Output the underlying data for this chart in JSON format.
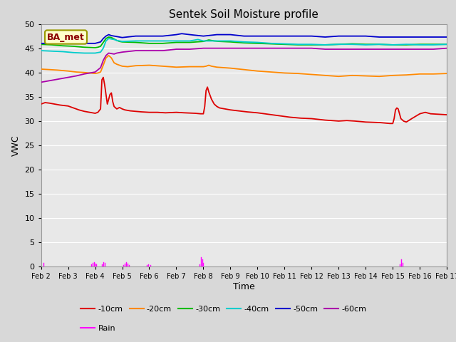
{
  "title": "Sentek Soil Moisture profile",
  "xlabel": "Time",
  "ylabel": "VWC",
  "xlim": [
    0,
    15
  ],
  "ylim": [
    0,
    50
  ],
  "yticks": [
    0,
    5,
    10,
    15,
    20,
    25,
    30,
    35,
    40,
    45,
    50
  ],
  "xtick_labels": [
    "Feb 2",
    "Feb 3",
    "Feb 4",
    "Feb 5",
    "Feb 6",
    "Feb 7",
    "Feb 8",
    "Feb 9",
    "Feb 10",
    "Feb 11",
    "Feb 12",
    "Feb 13",
    "Feb 14",
    "Feb 15",
    "Feb 16",
    "Feb 17"
  ],
  "background_color": "#d8d8d8",
  "plot_bg_color": "#e8e8e8",
  "grid_color": "#ffffff",
  "legend_box_facecolor": "#ffffcc",
  "legend_box_edge": "#999900",
  "label_text": "BA_met",
  "series": {
    "-10cm": {
      "color": "#dd0000",
      "points": [
        [
          0.0,
          33.5
        ],
        [
          0.15,
          33.8
        ],
        [
          0.3,
          33.7
        ],
        [
          0.5,
          33.5
        ],
        [
          0.7,
          33.3
        ],
        [
          1.0,
          33.1
        ],
        [
          1.2,
          32.7
        ],
        [
          1.4,
          32.3
        ],
        [
          1.6,
          32.0
        ],
        [
          1.8,
          31.8
        ],
        [
          2.0,
          31.6
        ],
        [
          2.1,
          31.8
        ],
        [
          2.2,
          32.5
        ],
        [
          2.25,
          38.5
        ],
        [
          2.3,
          39.0
        ],
        [
          2.35,
          37.5
        ],
        [
          2.4,
          35.5
        ],
        [
          2.45,
          33.5
        ],
        [
          2.5,
          34.5
        ],
        [
          2.55,
          35.5
        ],
        [
          2.6,
          35.8
        ],
        [
          2.65,
          34.0
        ],
        [
          2.7,
          33.0
        ],
        [
          2.8,
          32.5
        ],
        [
          2.9,
          32.8
        ],
        [
          3.0,
          32.5
        ],
        [
          3.1,
          32.3
        ],
        [
          3.3,
          32.1
        ],
        [
          3.5,
          32.0
        ],
        [
          3.7,
          31.9
        ],
        [
          4.0,
          31.8
        ],
        [
          4.3,
          31.8
        ],
        [
          4.6,
          31.7
        ],
        [
          5.0,
          31.8
        ],
        [
          5.3,
          31.7
        ],
        [
          5.7,
          31.6
        ],
        [
          5.9,
          31.5
        ],
        [
          6.0,
          31.5
        ],
        [
          6.05,
          33.0
        ],
        [
          6.1,
          36.3
        ],
        [
          6.15,
          37.0
        ],
        [
          6.2,
          36.0
        ],
        [
          6.3,
          34.5
        ],
        [
          6.4,
          33.5
        ],
        [
          6.5,
          33.0
        ],
        [
          6.6,
          32.7
        ],
        [
          6.8,
          32.5
        ],
        [
          7.0,
          32.3
        ],
        [
          7.3,
          32.1
        ],
        [
          7.6,
          31.9
        ],
        [
          8.0,
          31.7
        ],
        [
          8.4,
          31.4
        ],
        [
          8.8,
          31.1
        ],
        [
          9.2,
          30.8
        ],
        [
          9.6,
          30.6
        ],
        [
          10.0,
          30.5
        ],
        [
          10.5,
          30.2
        ],
        [
          11.0,
          30.0
        ],
        [
          11.3,
          30.1
        ],
        [
          11.6,
          30.0
        ],
        [
          12.0,
          29.8
        ],
        [
          12.5,
          29.7
        ],
        [
          12.9,
          29.5
        ],
        [
          13.0,
          29.5
        ],
        [
          13.05,
          30.5
        ],
        [
          13.1,
          32.3
        ],
        [
          13.15,
          32.7
        ],
        [
          13.2,
          32.5
        ],
        [
          13.3,
          30.5
        ],
        [
          13.4,
          30.0
        ],
        [
          13.5,
          29.8
        ],
        [
          13.7,
          30.5
        ],
        [
          14.0,
          31.5
        ],
        [
          14.2,
          31.8
        ],
        [
          14.4,
          31.5
        ],
        [
          14.7,
          31.4
        ],
        [
          15.0,
          31.3
        ]
      ]
    },
    "-20cm": {
      "color": "#ff8800",
      "points": [
        [
          0.0,
          40.7
        ],
        [
          0.3,
          40.6
        ],
        [
          0.6,
          40.5
        ],
        [
          1.0,
          40.3
        ],
        [
          1.3,
          40.1
        ],
        [
          1.6,
          40.0
        ],
        [
          2.0,
          39.8
        ],
        [
          2.1,
          39.9
        ],
        [
          2.2,
          40.1
        ],
        [
          2.3,
          41.5
        ],
        [
          2.4,
          43.0
        ],
        [
          2.5,
          43.5
        ],
        [
          2.6,
          43.0
        ],
        [
          2.7,
          42.0
        ],
        [
          2.8,
          41.7
        ],
        [
          2.9,
          41.5
        ],
        [
          3.0,
          41.3
        ],
        [
          3.2,
          41.2
        ],
        [
          3.5,
          41.4
        ],
        [
          4.0,
          41.5
        ],
        [
          4.5,
          41.3
        ],
        [
          5.0,
          41.1
        ],
        [
          5.5,
          41.2
        ],
        [
          6.0,
          41.2
        ],
        [
          6.1,
          41.3
        ],
        [
          6.2,
          41.5
        ],
        [
          6.3,
          41.3
        ],
        [
          6.5,
          41.1
        ],
        [
          7.0,
          40.9
        ],
        [
          7.5,
          40.6
        ],
        [
          8.0,
          40.3
        ],
        [
          8.5,
          40.1
        ],
        [
          9.0,
          39.9
        ],
        [
          9.5,
          39.8
        ],
        [
          10.0,
          39.6
        ],
        [
          10.5,
          39.4
        ],
        [
          11.0,
          39.2
        ],
        [
          11.5,
          39.4
        ],
        [
          12.0,
          39.3
        ],
        [
          12.5,
          39.2
        ],
        [
          13.0,
          39.4
        ],
        [
          13.5,
          39.5
        ],
        [
          14.0,
          39.7
        ],
        [
          14.5,
          39.7
        ],
        [
          15.0,
          39.8
        ]
      ]
    },
    "-30cm": {
      "color": "#00bb00",
      "points": [
        [
          0.0,
          45.8
        ],
        [
          0.4,
          45.7
        ],
        [
          0.8,
          45.5
        ],
        [
          1.2,
          45.4
        ],
        [
          1.6,
          45.2
        ],
        [
          2.0,
          45.1
        ],
        [
          2.1,
          45.2
        ],
        [
          2.2,
          45.4
        ],
        [
          2.3,
          46.2
        ],
        [
          2.4,
          47.0
        ],
        [
          2.5,
          47.3
        ],
        [
          2.6,
          47.2
        ],
        [
          2.7,
          46.9
        ],
        [
          2.8,
          46.6
        ],
        [
          2.9,
          46.4
        ],
        [
          3.0,
          46.3
        ],
        [
          3.5,
          46.2
        ],
        [
          4.0,
          46.0
        ],
        [
          4.5,
          46.0
        ],
        [
          5.0,
          46.2
        ],
        [
          5.5,
          46.2
        ],
        [
          6.0,
          46.4
        ],
        [
          6.2,
          46.7
        ],
        [
          6.4,
          46.5
        ],
        [
          6.6,
          46.4
        ],
        [
          7.0,
          46.3
        ],
        [
          7.5,
          46.1
        ],
        [
          8.0,
          46.0
        ],
        [
          8.5,
          45.9
        ],
        [
          9.0,
          45.8
        ],
        [
          9.5,
          45.7
        ],
        [
          10.0,
          45.7
        ],
        [
          10.5,
          45.7
        ],
        [
          11.0,
          45.8
        ],
        [
          11.5,
          45.9
        ],
        [
          12.0,
          45.8
        ],
        [
          12.5,
          45.8
        ],
        [
          13.0,
          45.7
        ],
        [
          13.5,
          45.7
        ],
        [
          14.0,
          45.8
        ],
        [
          14.5,
          45.8
        ],
        [
          15.0,
          45.8
        ]
      ]
    },
    "-40cm": {
      "color": "#00cccc",
      "points": [
        [
          0.0,
          44.5
        ],
        [
          0.4,
          44.4
        ],
        [
          0.8,
          44.3
        ],
        [
          1.2,
          44.1
        ],
        [
          1.6,
          44.0
        ],
        [
          2.0,
          44.0
        ],
        [
          2.2,
          44.2
        ],
        [
          2.3,
          45.0
        ],
        [
          2.4,
          46.5
        ],
        [
          2.5,
          47.0
        ],
        [
          2.6,
          46.9
        ],
        [
          2.7,
          46.8
        ],
        [
          2.8,
          46.6
        ],
        [
          2.9,
          46.5
        ],
        [
          3.0,
          46.4
        ],
        [
          3.5,
          46.5
        ],
        [
          4.0,
          46.5
        ],
        [
          4.5,
          46.5
        ],
        [
          5.0,
          46.5
        ],
        [
          5.5,
          46.5
        ],
        [
          5.8,
          46.8
        ],
        [
          6.0,
          46.5
        ],
        [
          6.5,
          46.5
        ],
        [
          7.0,
          46.5
        ],
        [
          7.5,
          46.3
        ],
        [
          8.0,
          46.2
        ],
        [
          8.5,
          46.0
        ],
        [
          9.0,
          45.9
        ],
        [
          9.5,
          45.8
        ],
        [
          10.0,
          45.8
        ],
        [
          10.5,
          45.7
        ],
        [
          11.0,
          45.8
        ],
        [
          11.5,
          45.8
        ],
        [
          12.0,
          45.7
        ],
        [
          12.5,
          45.8
        ],
        [
          13.0,
          45.7
        ],
        [
          13.5,
          45.8
        ],
        [
          14.0,
          45.7
        ],
        [
          14.5,
          45.7
        ],
        [
          15.0,
          45.8
        ]
      ]
    },
    "-50cm": {
      "color": "#0000cc",
      "points": [
        [
          0.0,
          46.0
        ],
        [
          0.5,
          46.0
        ],
        [
          1.0,
          46.0
        ],
        [
          1.5,
          46.0
        ],
        [
          2.0,
          46.0
        ],
        [
          2.2,
          46.3
        ],
        [
          2.3,
          47.0
        ],
        [
          2.4,
          47.5
        ],
        [
          2.5,
          47.8
        ],
        [
          2.6,
          47.6
        ],
        [
          2.7,
          47.5
        ],
        [
          2.8,
          47.4
        ],
        [
          2.9,
          47.3
        ],
        [
          3.0,
          47.2
        ],
        [
          3.5,
          47.5
        ],
        [
          4.0,
          47.5
        ],
        [
          4.5,
          47.5
        ],
        [
          5.0,
          47.8
        ],
        [
          5.2,
          48.0
        ],
        [
          5.5,
          47.8
        ],
        [
          6.0,
          47.5
        ],
        [
          6.5,
          47.8
        ],
        [
          7.0,
          47.8
        ],
        [
          7.5,
          47.5
        ],
        [
          8.0,
          47.5
        ],
        [
          8.5,
          47.5
        ],
        [
          9.0,
          47.5
        ],
        [
          9.5,
          47.5
        ],
        [
          10.0,
          47.5
        ],
        [
          10.5,
          47.3
        ],
        [
          11.0,
          47.5
        ],
        [
          11.5,
          47.5
        ],
        [
          12.0,
          47.5
        ],
        [
          12.5,
          47.3
        ],
        [
          13.0,
          47.3
        ],
        [
          13.5,
          47.3
        ],
        [
          14.0,
          47.3
        ],
        [
          14.5,
          47.3
        ],
        [
          15.0,
          47.3
        ]
      ]
    },
    "-60cm": {
      "color": "#aa00aa",
      "points": [
        [
          0.0,
          38.0
        ],
        [
          0.3,
          38.3
        ],
        [
          0.6,
          38.6
        ],
        [
          1.0,
          39.0
        ],
        [
          1.3,
          39.3
        ],
        [
          1.6,
          39.7
        ],
        [
          2.0,
          40.1
        ],
        [
          2.2,
          41.0
        ],
        [
          2.3,
          42.5
        ],
        [
          2.4,
          43.5
        ],
        [
          2.5,
          44.0
        ],
        [
          2.6,
          43.9
        ],
        [
          2.7,
          43.8
        ],
        [
          2.8,
          44.0
        ],
        [
          2.9,
          44.1
        ],
        [
          3.0,
          44.2
        ],
        [
          3.5,
          44.5
        ],
        [
          4.0,
          44.5
        ],
        [
          4.5,
          44.5
        ],
        [
          5.0,
          44.8
        ],
        [
          5.5,
          44.8
        ],
        [
          6.0,
          45.0
        ],
        [
          6.5,
          45.0
        ],
        [
          7.0,
          45.0
        ],
        [
          7.5,
          45.0
        ],
        [
          8.0,
          45.0
        ],
        [
          8.5,
          45.0
        ],
        [
          9.0,
          45.0
        ],
        [
          9.5,
          45.0
        ],
        [
          10.0,
          45.0
        ],
        [
          10.5,
          44.8
        ],
        [
          11.0,
          44.8
        ],
        [
          11.5,
          44.8
        ],
        [
          12.0,
          44.8
        ],
        [
          12.5,
          44.8
        ],
        [
          13.0,
          44.8
        ],
        [
          13.5,
          44.8
        ],
        [
          14.0,
          44.8
        ],
        [
          14.5,
          44.8
        ],
        [
          15.0,
          45.0
        ]
      ]
    },
    "Rain": {
      "color": "#ff00ff",
      "spikes": [
        [
          0.1,
          0.8
        ],
        [
          1.85,
          0.5
        ],
        [
          1.9,
          0.8
        ],
        [
          1.95,
          1.0
        ],
        [
          2.0,
          0.7
        ],
        [
          2.05,
          0.5
        ],
        [
          2.25,
          0.5
        ],
        [
          2.3,
          1.0
        ],
        [
          2.35,
          0.8
        ],
        [
          3.05,
          0.3
        ],
        [
          3.1,
          0.6
        ],
        [
          3.15,
          1.0
        ],
        [
          3.2,
          0.6
        ],
        [
          3.25,
          0.4
        ],
        [
          3.9,
          0.3
        ],
        [
          3.95,
          0.5
        ],
        [
          4.05,
          0.3
        ],
        [
          5.85,
          0.5
        ],
        [
          5.9,
          2.0
        ],
        [
          5.95,
          1.5
        ],
        [
          6.0,
          0.8
        ],
        [
          13.25,
          0.5
        ],
        [
          13.3,
          1.5
        ],
        [
          13.35,
          0.8
        ]
      ]
    }
  }
}
